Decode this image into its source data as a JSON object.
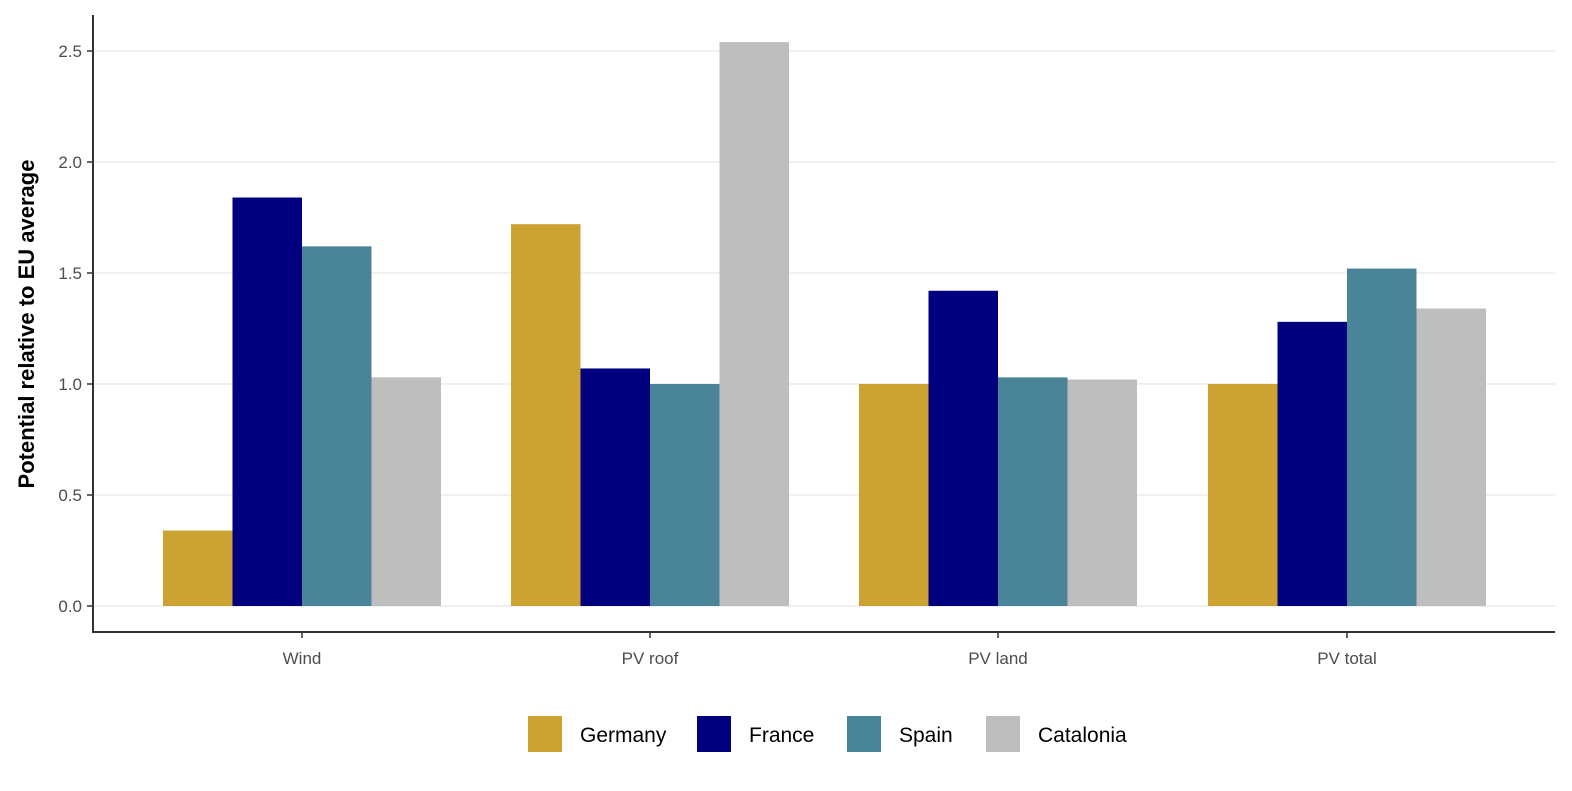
{
  "chart_data": {
    "type": "bar",
    "title": "",
    "xlabel": "",
    "ylabel": "Potential relative to EU average",
    "ylim": [
      0,
      2.6
    ],
    "yticks": [
      "0.0",
      "0.5",
      "1.0",
      "1.5",
      "2.0",
      "2.5"
    ],
    "grid": "horizontal",
    "legend_position": "bottom",
    "categories": [
      "Wind",
      "PV roof",
      "PV land",
      "PV total"
    ],
    "series": [
      {
        "name": "Germany",
        "color": "#CCA332",
        "values": [
          0.34,
          1.72,
          1.0,
          1.0
        ]
      },
      {
        "name": "France",
        "color": "#00007F",
        "values": [
          1.84,
          1.07,
          1.42,
          1.28
        ]
      },
      {
        "name": "Spain",
        "color": "#4A8499",
        "values": [
          1.62,
          1.0,
          1.03,
          1.52
        ]
      },
      {
        "name": "Catalonia",
        "color": "#BEBEBE",
        "values": [
          1.03,
          2.54,
          1.02,
          1.34
        ]
      }
    ]
  }
}
